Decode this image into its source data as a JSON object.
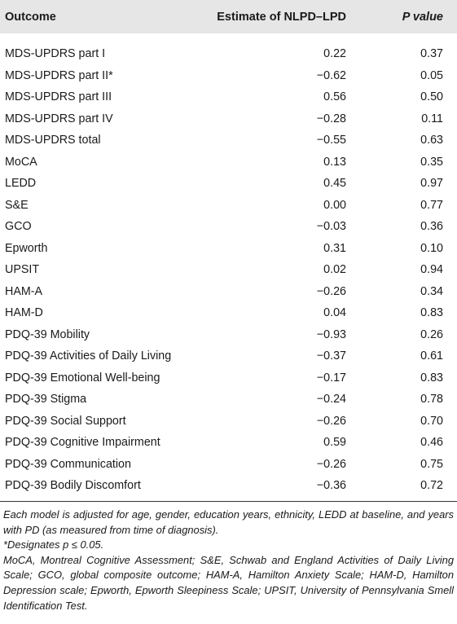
{
  "table": {
    "headers": {
      "outcome": "Outcome",
      "estimate": "Estimate of NLPD–LPD",
      "p_value": "P value"
    },
    "rows": [
      {
        "outcome": "MDS-UPDRS part I",
        "estimate": "0.22",
        "p": "0.37"
      },
      {
        "outcome": "MDS-UPDRS part II*",
        "estimate": "−0.62",
        "p": "0.05"
      },
      {
        "outcome": "MDS-UPDRS part III",
        "estimate": "0.56",
        "p": "0.50"
      },
      {
        "outcome": "MDS-UPDRS part IV",
        "estimate": "−0.28",
        "p": "0.11"
      },
      {
        "outcome": "MDS-UPDRS total",
        "estimate": "−0.55",
        "p": "0.63"
      },
      {
        "outcome": "MoCA",
        "estimate": "0.13",
        "p": "0.35"
      },
      {
        "outcome": "LEDD",
        "estimate": "0.45",
        "p": "0.97"
      },
      {
        "outcome": "S&E",
        "estimate": "0.00",
        "p": "0.77"
      },
      {
        "outcome": "GCO",
        "estimate": "−0.03",
        "p": "0.36"
      },
      {
        "outcome": "Epworth",
        "estimate": "0.31",
        "p": "0.10"
      },
      {
        "outcome": "UPSIT",
        "estimate": "0.02",
        "p": "0.94"
      },
      {
        "outcome": "HAM-A",
        "estimate": "−0.26",
        "p": "0.34"
      },
      {
        "outcome": "HAM-D",
        "estimate": "0.04",
        "p": "0.83"
      },
      {
        "outcome": "PDQ-39 Mobility",
        "estimate": "−0.93",
        "p": "0.26"
      },
      {
        "outcome": "PDQ-39 Activities of Daily Living",
        "estimate": "−0.37",
        "p": "0.61"
      },
      {
        "outcome": "PDQ-39 Emotional Well-being",
        "estimate": "−0.17",
        "p": "0.83"
      },
      {
        "outcome": "PDQ-39 Stigma",
        "estimate": "−0.24",
        "p": "0.78"
      },
      {
        "outcome": "PDQ-39 Social Support",
        "estimate": "−0.26",
        "p": "0.70"
      },
      {
        "outcome": "PDQ-39 Cognitive Impairment",
        "estimate": "0.59",
        "p": "0.46"
      },
      {
        "outcome": "PDQ-39 Communication",
        "estimate": "−0.26",
        "p": "0.75"
      },
      {
        "outcome": "PDQ-39 Bodily Discomfort",
        "estimate": "−0.36",
        "p": "0.72"
      }
    ]
  },
  "footnotes": {
    "adjustment": "Each model is adjusted for age, gender, education years, ethnicity, LEDD at baseline, and years with PD (as measured from time of diagnosis).",
    "significance": "*Designates p ≤ 0.05.",
    "abbreviations": "MoCA, Montreal Cognitive Assessment; S&E, Schwab and England Activities of Daily Living Scale; GCO, global composite outcome; HAM-A, Hamilton Anxiety Scale; HAM-D, Hamilton Depression scale; Epworth, Epworth Sleepiness Scale; UPSIT, University of Pennsylvania Smell Identification Test."
  }
}
